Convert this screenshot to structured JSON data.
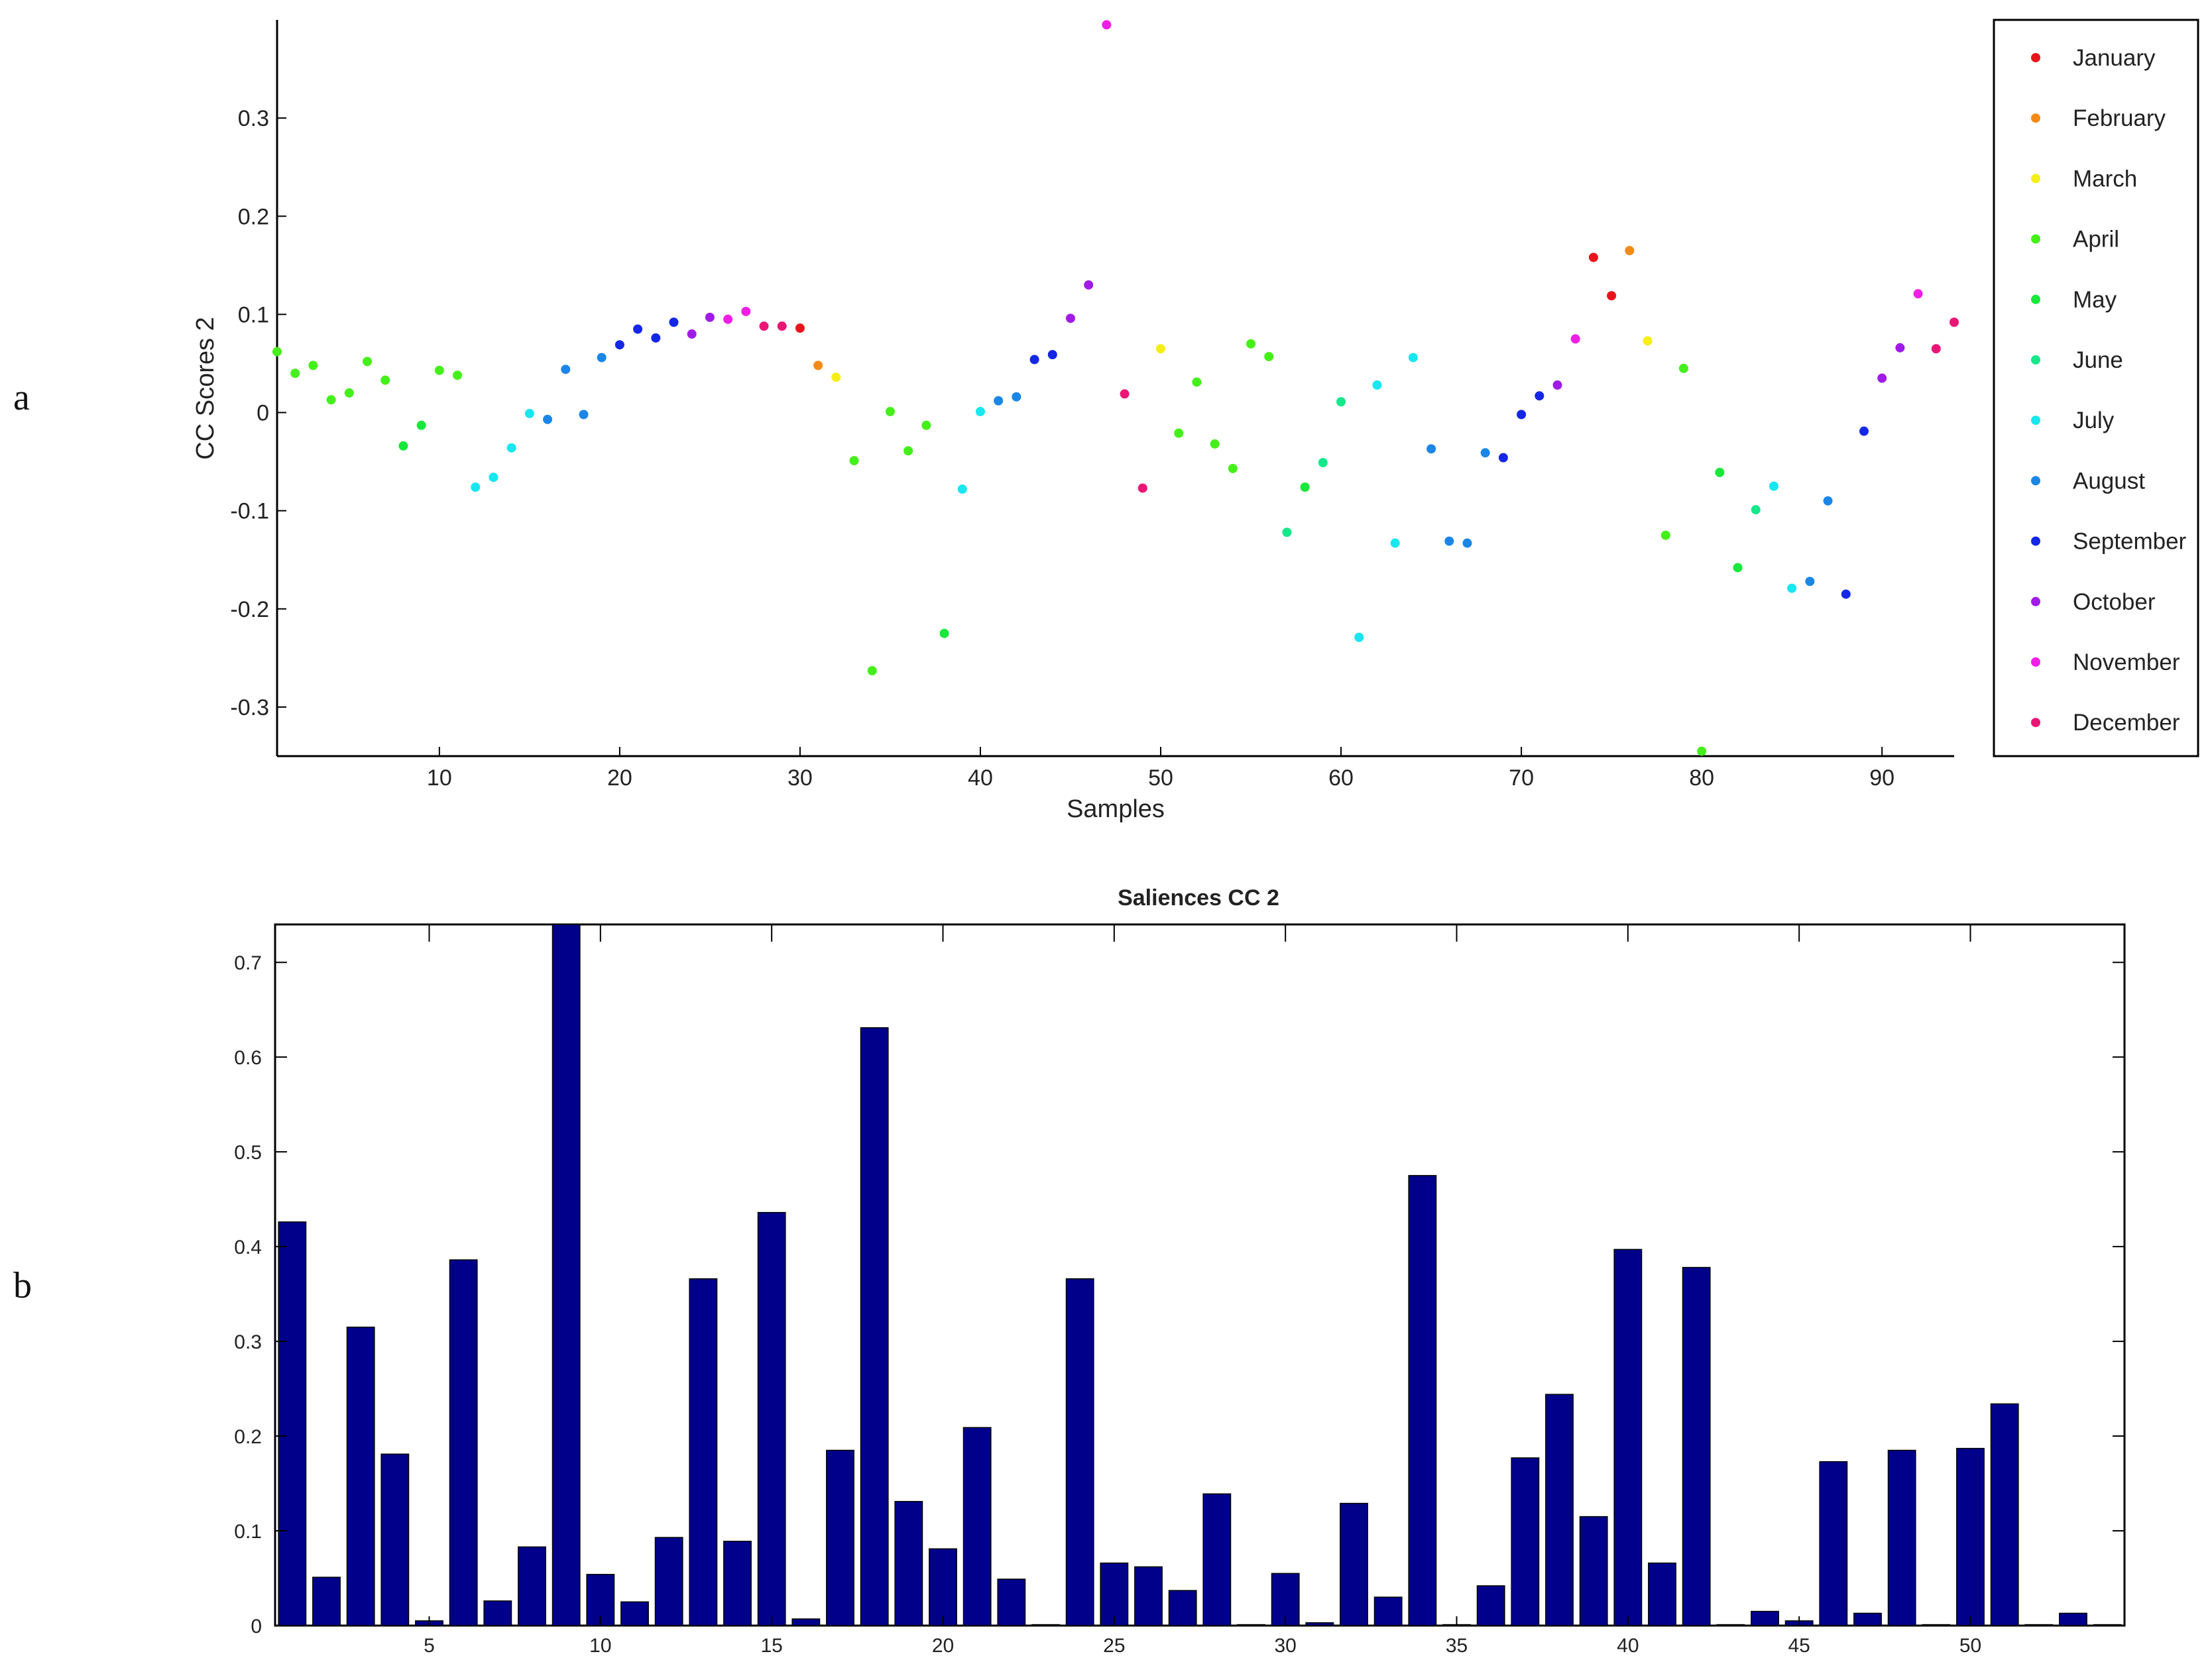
{
  "panels": {
    "a_label": "a",
    "b_label": "b"
  },
  "chart_data": [
    {
      "type": "scatter",
      "title": "",
      "xlabel": "Samples",
      "ylabel": "CC Scores 2",
      "xlim": [
        1,
        94
      ],
      "ylim": [
        -0.35,
        0.4
      ],
      "xticks": [
        10,
        20,
        30,
        40,
        50,
        60,
        70,
        80,
        90
      ],
      "yticks": [
        0.3,
        0.2,
        0.1,
        0,
        -0.1,
        -0.2,
        -0.3
      ],
      "ytick_labels": [
        "0.3",
        "0.2",
        "0.1",
        "0",
        "-0.1",
        "-0.2",
        "-0.3"
      ],
      "grid": false,
      "legend_position": "right",
      "legend": [
        {
          "name": "January",
          "color": "#e8141c"
        },
        {
          "name": "February",
          "color": "#f58a16"
        },
        {
          "name": "March",
          "color": "#f5ee18"
        },
        {
          "name": "April",
          "color": "#45f01a"
        },
        {
          "name": "May",
          "color": "#17e839"
        },
        {
          "name": "June",
          "color": "#14e88a"
        },
        {
          "name": "July",
          "color": "#18e6f0"
        },
        {
          "name": "August",
          "color": "#1b86e6"
        },
        {
          "name": "September",
          "color": "#1426e6"
        },
        {
          "name": "October",
          "color": "#a11be6"
        },
        {
          "name": "November",
          "color": "#f01ee6"
        },
        {
          "name": "December",
          "color": "#ea1676"
        }
      ],
      "points": [
        {
          "x": 1,
          "y": 0.062,
          "m": 4
        },
        {
          "x": 2,
          "y": 0.04,
          "m": 4
        },
        {
          "x": 3,
          "y": 0.048,
          "m": 4
        },
        {
          "x": 4,
          "y": 0.013,
          "m": 4
        },
        {
          "x": 5,
          "y": 0.02,
          "m": 4
        },
        {
          "x": 6,
          "y": 0.052,
          "m": 4
        },
        {
          "x": 7,
          "y": 0.033,
          "m": 4
        },
        {
          "x": 8,
          "y": -0.034,
          "m": 5
        },
        {
          "x": 9,
          "y": -0.013,
          "m": 5
        },
        {
          "x": 10,
          "y": 0.043,
          "m": 4
        },
        {
          "x": 11,
          "y": 0.038,
          "m": 4
        },
        {
          "x": 12,
          "y": -0.076,
          "m": 7
        },
        {
          "x": 13,
          "y": -0.066,
          "m": 7
        },
        {
          "x": 14,
          "y": -0.036,
          "m": 7
        },
        {
          "x": 15,
          "y": -0.001,
          "m": 7
        },
        {
          "x": 16,
          "y": -0.007,
          "m": 8
        },
        {
          "x": 17,
          "y": 0.044,
          "m": 8
        },
        {
          "x": 18,
          "y": -0.002,
          "m": 8
        },
        {
          "x": 19,
          "y": 0.056,
          "m": 8
        },
        {
          "x": 20,
          "y": 0.069,
          "m": 9
        },
        {
          "x": 21,
          "y": 0.085,
          "m": 9
        },
        {
          "x": 22,
          "y": 0.076,
          "m": 9
        },
        {
          "x": 23,
          "y": 0.092,
          "m": 9
        },
        {
          "x": 24,
          "y": 0.08,
          "m": 10
        },
        {
          "x": 25,
          "y": 0.097,
          "m": 10
        },
        {
          "x": 26,
          "y": 0.095,
          "m": 11
        },
        {
          "x": 27,
          "y": 0.103,
          "m": 11
        },
        {
          "x": 28,
          "y": 0.088,
          "m": 12
        },
        {
          "x": 29,
          "y": 0.088,
          "m": 12
        },
        {
          "x": 30,
          "y": 0.086,
          "m": 1
        },
        {
          "x": 31,
          "y": 0.048,
          "m": 2
        },
        {
          "x": 32,
          "y": 0.036,
          "m": 3
        },
        {
          "x": 33,
          "y": -0.049,
          "m": 4
        },
        {
          "x": 34,
          "y": -0.263,
          "m": 4
        },
        {
          "x": 35,
          "y": 0.001,
          "m": 4
        },
        {
          "x": 36,
          "y": -0.039,
          "m": 4
        },
        {
          "x": 37,
          "y": -0.013,
          "m": 4
        },
        {
          "x": 38,
          "y": -0.225,
          "m": 5
        },
        {
          "x": 39,
          "y": -0.078,
          "m": 7
        },
        {
          "x": 40,
          "y": 0.001,
          "m": 7
        },
        {
          "x": 41,
          "y": 0.012,
          "m": 8
        },
        {
          "x": 42,
          "y": 0.016,
          "m": 8
        },
        {
          "x": 43,
          "y": 0.054,
          "m": 9
        },
        {
          "x": 44,
          "y": 0.059,
          "m": 9
        },
        {
          "x": 45,
          "y": 0.096,
          "m": 10
        },
        {
          "x": 46,
          "y": 0.13,
          "m": 10
        },
        {
          "x": 47,
          "y": 0.395,
          "m": 11
        },
        {
          "x": 48,
          "y": 0.019,
          "m": 12
        },
        {
          "x": 49,
          "y": -0.077,
          "m": 12
        },
        {
          "x": 50,
          "y": 0.065,
          "m": 3
        },
        {
          "x": 51,
          "y": -0.021,
          "m": 4
        },
        {
          "x": 52,
          "y": 0.031,
          "m": 4
        },
        {
          "x": 53,
          "y": -0.032,
          "m": 4
        },
        {
          "x": 54,
          "y": -0.057,
          "m": 4
        },
        {
          "x": 55,
          "y": 0.07,
          "m": 4
        },
        {
          "x": 56,
          "y": 0.057,
          "m": 4
        },
        {
          "x": 57,
          "y": -0.122,
          "m": 6
        },
        {
          "x": 58,
          "y": -0.076,
          "m": 5
        },
        {
          "x": 59,
          "y": -0.051,
          "m": 6
        },
        {
          "x": 60,
          "y": 0.011,
          "m": 6
        },
        {
          "x": 61,
          "y": -0.229,
          "m": 7
        },
        {
          "x": 62,
          "y": 0.028,
          "m": 7
        },
        {
          "x": 63,
          "y": -0.133,
          "m": 7
        },
        {
          "x": 64,
          "y": 0.056,
          "m": 7
        },
        {
          "x": 65,
          "y": -0.037,
          "m": 8
        },
        {
          "x": 66,
          "y": -0.131,
          "m": 8
        },
        {
          "x": 67,
          "y": -0.133,
          "m": 8
        },
        {
          "x": 68,
          "y": -0.041,
          "m": 8
        },
        {
          "x": 69,
          "y": -0.046,
          "m": 9
        },
        {
          "x": 70,
          "y": -0.002,
          "m": 9
        },
        {
          "x": 71,
          "y": 0.017,
          "m": 9
        },
        {
          "x": 72,
          "y": 0.028,
          "m": 10
        },
        {
          "x": 73,
          "y": 0.075,
          "m": 11
        },
        {
          "x": 74,
          "y": 0.158,
          "m": 1
        },
        {
          "x": 75,
          "y": 0.119,
          "m": 1
        },
        {
          "x": 76,
          "y": 0.165,
          "m": 2
        },
        {
          "x": 77,
          "y": 0.073,
          "m": 3
        },
        {
          "x": 78,
          "y": -0.125,
          "m": 4
        },
        {
          "x": 79,
          "y": 0.045,
          "m": 4
        },
        {
          "x": 80,
          "y": -0.345,
          "m": 4
        },
        {
          "x": 81,
          "y": -0.061,
          "m": 5
        },
        {
          "x": 82,
          "y": -0.158,
          "m": 5
        },
        {
          "x": 83,
          "y": -0.099,
          "m": 6
        },
        {
          "x": 84,
          "y": -0.075,
          "m": 7
        },
        {
          "x": 85,
          "y": -0.179,
          "m": 7
        },
        {
          "x": 86,
          "y": -0.172,
          "m": 8
        },
        {
          "x": 87,
          "y": -0.09,
          "m": 8
        },
        {
          "x": 88,
          "y": -0.185,
          "m": 9
        },
        {
          "x": 89,
          "y": -0.019,
          "m": 9
        },
        {
          "x": 90,
          "y": 0.035,
          "m": 10
        },
        {
          "x": 91,
          "y": 0.066,
          "m": 10
        },
        {
          "x": 92,
          "y": 0.121,
          "m": 11
        },
        {
          "x": 93,
          "y": 0.065,
          "m": 12
        },
        {
          "x": 94,
          "y": 0.092,
          "m": 12
        }
      ]
    },
    {
      "type": "bar",
      "title": "Saliences CC 2",
      "xlabel": "",
      "ylabel": "",
      "color": "#00008b",
      "xlim": [
        0.5,
        54.5
      ],
      "ylim": [
        0,
        0.74
      ],
      "xticks": [
        5,
        10,
        15,
        20,
        25,
        30,
        35,
        40,
        45,
        50
      ],
      "yticks": [
        0,
        0.1,
        0.2,
        0.3,
        0.4,
        0.5,
        0.6,
        0.7
      ],
      "ytick_labels": [
        "0",
        "0.1",
        "0.2",
        "0.3",
        "0.4",
        "0.5",
        "0.6",
        "0.7"
      ],
      "grid": false,
      "categories": [
        1,
        2,
        3,
        4,
        5,
        6,
        7,
        8,
        9,
        10,
        11,
        12,
        13,
        14,
        15,
        16,
        17,
        18,
        19,
        20,
        21,
        22,
        23,
        24,
        25,
        26,
        27,
        28,
        29,
        30,
        31,
        32,
        33,
        34,
        35,
        36,
        37,
        38,
        39,
        40,
        41,
        42,
        43,
        44,
        45,
        46,
        47,
        48,
        49,
        50,
        51,
        52,
        53,
        54
      ],
      "values": [
        0.426,
        0.051,
        0.315,
        0.181,
        0.005,
        0.386,
        0.026,
        0.083,
        0.74,
        0.054,
        0.025,
        0.093,
        0.366,
        0.089,
        0.436,
        0.007,
        0.185,
        0.631,
        0.131,
        0.081,
        0.209,
        0.049,
        0.001,
        0.366,
        0.066,
        0.062,
        0.037,
        0.139,
        0.001,
        0.055,
        0.003,
        0.129,
        0.03,
        0.475,
        0.001,
        0.042,
        0.177,
        0.244,
        0.115,
        0.397,
        0.066,
        0.378,
        0.001,
        0.015,
        0.005,
        0.173,
        0.013,
        0.185,
        0.001,
        0.187,
        0.234,
        0.001,
        0.013,
        0.001
      ]
    }
  ]
}
